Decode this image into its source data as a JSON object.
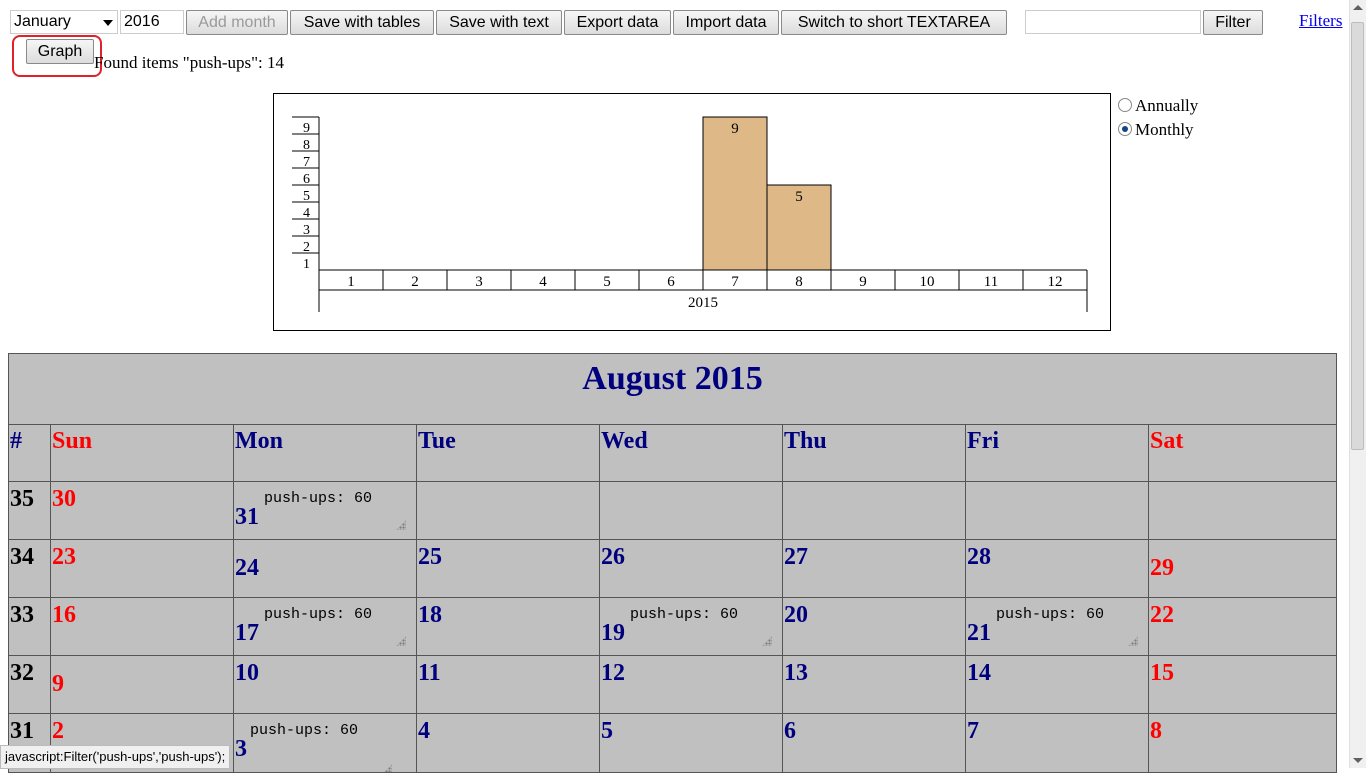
{
  "toolbar": {
    "month_selected": "January",
    "year_value": "2016",
    "add_month": "Add month",
    "save_tables": "Save with tables",
    "save_text": "Save with text",
    "export": "Export data",
    "import": "Import data",
    "switch_textarea": "Switch to short TEXTAREA",
    "filter_value": "",
    "filter_button": "Filter",
    "filters_link": "Filters"
  },
  "graph_button": "Graph",
  "found_text": "Found items \"push-ups\": 14",
  "period_options": {
    "annually": "Annually",
    "monthly": "Monthly",
    "selected": "Monthly"
  },
  "chart_data": {
    "type": "bar",
    "categories": [
      "1",
      "2",
      "3",
      "4",
      "5",
      "6",
      "7",
      "8",
      "9",
      "10",
      "11",
      "12"
    ],
    "values": [
      0,
      0,
      0,
      0,
      0,
      0,
      9,
      5,
      0,
      0,
      0,
      0
    ],
    "y_ticks": [
      "1",
      "2",
      "3",
      "4",
      "5",
      "6",
      "7",
      "8",
      "9"
    ],
    "ylim": [
      0,
      9
    ],
    "xlabel": "2015",
    "colors": {
      "bar": "#deb887"
    }
  },
  "calendar": {
    "title": "August 2015",
    "headers": [
      "#",
      "Sun",
      "Mon",
      "Tue",
      "Wed",
      "Thu",
      "Fri",
      "Sat"
    ],
    "rows": [
      {
        "week": "35",
        "days": [
          "30",
          "31",
          "",
          "",
          "",
          "",
          ""
        ],
        "notes": [
          "",
          "push-ups: 60",
          "",
          "",
          "",
          "",
          ""
        ]
      },
      {
        "week": "34",
        "days": [
          "23",
          "24",
          "25",
          "26",
          "27",
          "28",
          "29"
        ],
        "notes": [
          "",
          "",
          "",
          "",
          "",
          "",
          ""
        ]
      },
      {
        "week": "33",
        "days": [
          "16",
          "17",
          "18",
          "19",
          "20",
          "21",
          "22"
        ],
        "notes": [
          "",
          "push-ups: 60",
          "",
          "push-ups: 60",
          "",
          "push-ups: 60",
          ""
        ]
      },
      {
        "week": "32",
        "days": [
          "9",
          "10",
          "11",
          "12",
          "13",
          "14",
          "15"
        ],
        "notes": [
          "",
          "",
          "",
          "",
          "",
          "",
          ""
        ]
      },
      {
        "week": "31",
        "days": [
          "2",
          "3",
          "4",
          "5",
          "6",
          "7",
          "8"
        ],
        "notes": [
          "",
          "push-ups: 60",
          "",
          "",
          "",
          "",
          ""
        ]
      }
    ]
  },
  "status_url": "javascript:Filter('push-ups','push-ups');"
}
